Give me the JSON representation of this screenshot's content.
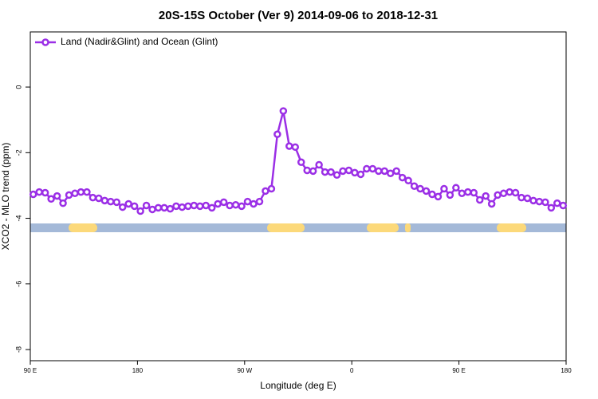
{
  "chart_data": {
    "type": "line",
    "title": "20S-15S October (Ver 9)   2014-09-06 to 2018-12-31",
    "xlabel": "Longitude (deg E)",
    "ylabel": "XCO2 - MLO trend (ppm)",
    "x": [
      92.5,
      97.5,
      102.5,
      107.5,
      112.5,
      117.5,
      122.5,
      127.5,
      132.5,
      137.5,
      142.5,
      147.5,
      152.5,
      157.5,
      162.5,
      167.5,
      172.5,
      177.5,
      182.5,
      187.5,
      192.5,
      197.5,
      202.5,
      207.5,
      212.5,
      217.5,
      222.5,
      227.5,
      232.5,
      237.5,
      242.5,
      247.5,
      252.5,
      257.5,
      262.5,
      267.5,
      272.5,
      277.5,
      282.5,
      287.5,
      292.5,
      297.5,
      302.5,
      307.5,
      312.5,
      317.5,
      322.5,
      327.5,
      332.5,
      337.5,
      342.5,
      347.5,
      352.5,
      357.5,
      362.5,
      367.5,
      372.5,
      377.5,
      382.5,
      387.5,
      392.5,
      397.5,
      402.5,
      407.5,
      412.5,
      417.5,
      422.5,
      427.5,
      432.5,
      437.5,
      442.5,
      447.5,
      452.5,
      457.5,
      462.5,
      467.5,
      472.5,
      477.5,
      482.5,
      487.5,
      492.5,
      497.5,
      502.5,
      507.5,
      512.5,
      517.5,
      522.5,
      527.5,
      532.5,
      537.5
    ],
    "series": [
      {
        "name": "Land (Nadir&Glint) and Ocean (Glint)",
        "color": "#9b2fe6",
        "values": [
          -3.27,
          -3.2,
          -3.22,
          -3.41,
          -3.32,
          -3.54,
          -3.29,
          -3.24,
          -3.2,
          -3.2,
          -3.37,
          -3.39,
          -3.46,
          -3.49,
          -3.51,
          -3.66,
          -3.56,
          -3.63,
          -3.78,
          -3.61,
          -3.73,
          -3.68,
          -3.68,
          -3.71,
          -3.63,
          -3.66,
          -3.63,
          -3.61,
          -3.63,
          -3.61,
          -3.68,
          -3.56,
          -3.51,
          -3.61,
          -3.59,
          -3.63,
          -3.49,
          -3.56,
          -3.49,
          -3.17,
          -3.1,
          -1.44,
          -0.73,
          -1.8,
          -1.83,
          -2.29,
          -2.54,
          -2.56,
          -2.37,
          -2.59,
          -2.59,
          -2.68,
          -2.56,
          -2.54,
          -2.61,
          -2.66,
          -2.49,
          -2.49,
          -2.56,
          -2.56,
          -2.63,
          -2.56,
          -2.76,
          -2.85,
          -3.02,
          -3.1,
          -3.17,
          -3.27,
          -3.34,
          -3.1,
          -3.29,
          -3.07,
          -3.24,
          -3.2,
          -3.22,
          -3.44,
          -3.32,
          -3.56,
          -3.29,
          -3.24,
          -3.2,
          -3.22,
          -3.37,
          -3.39,
          -3.46,
          -3.49,
          -3.51,
          -3.68,
          -3.54,
          -3.61
        ]
      }
    ],
    "xlim": [
      90,
      540
    ],
    "xticks": [
      {
        "value": 90,
        "label": "90 E"
      },
      {
        "value": 180,
        "label": "180"
      },
      {
        "value": 270,
        "label": "90 W"
      },
      {
        "value": 360,
        "label": "0"
      },
      {
        "value": 450,
        "label": "90 E"
      },
      {
        "value": 540,
        "label": "180"
      }
    ],
    "ylim": [
      -8.34,
      1.68
    ],
    "yticks": [
      0,
      -2,
      -4,
      -6,
      -8
    ],
    "legend": "top-left"
  }
}
